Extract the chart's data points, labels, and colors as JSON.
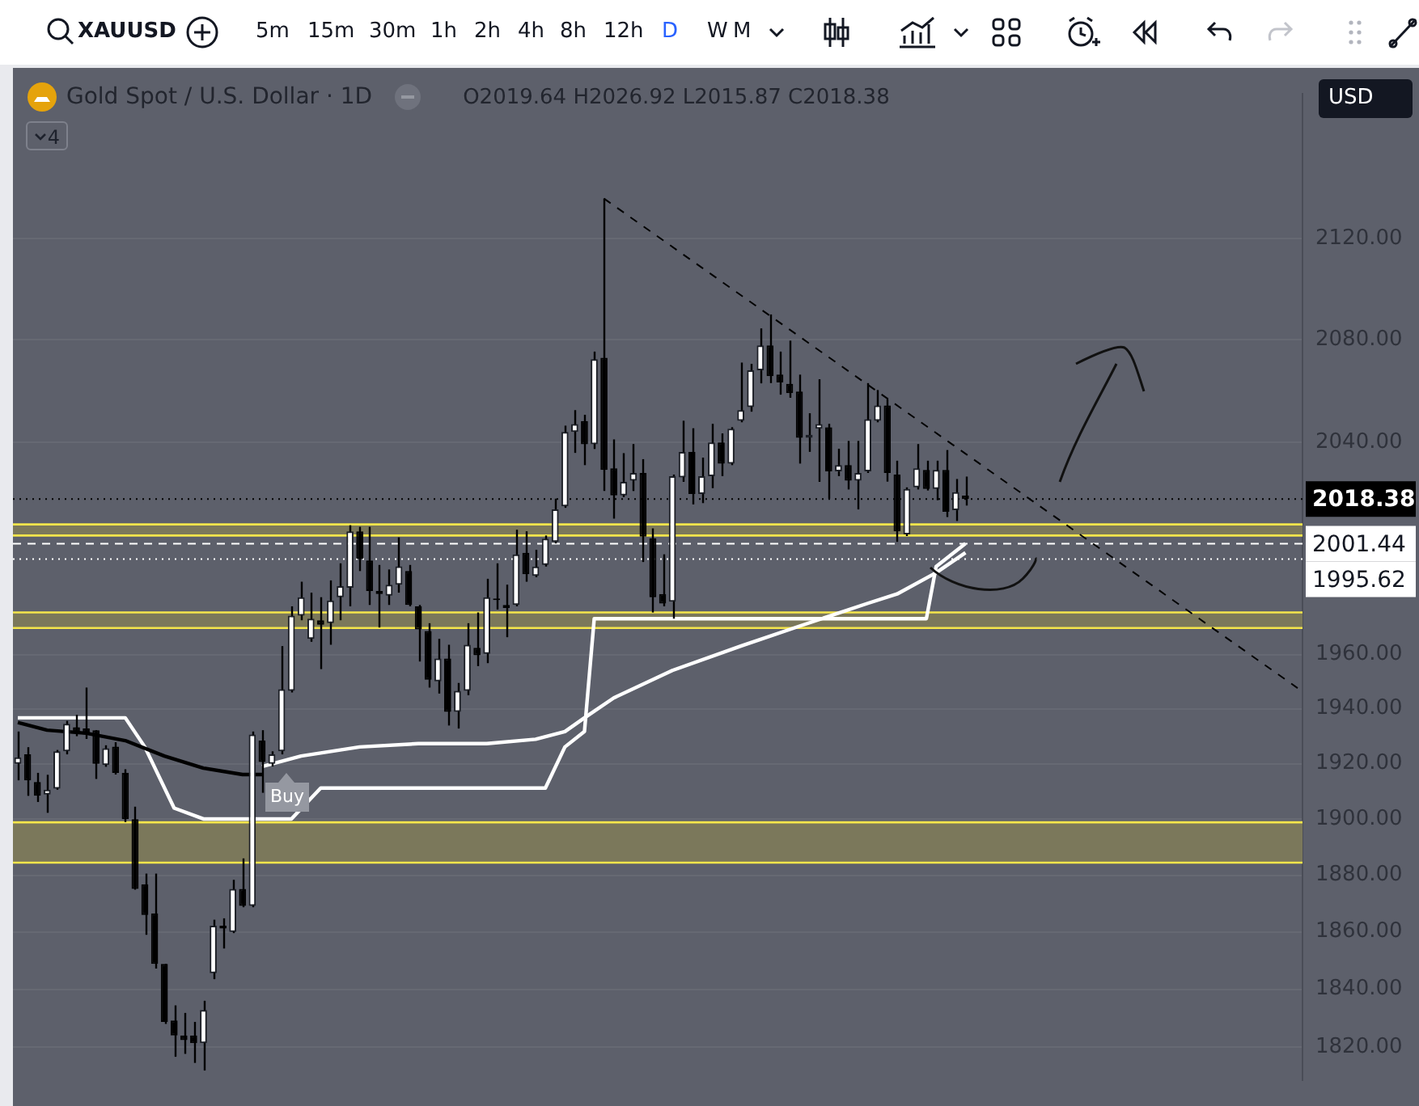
{
  "chart_data": {
    "type": "candlestick",
    "title": "Gold Spot / U.S. Dollar · 1D",
    "subtitle": "O2019.64 H2026.92 L2015.87 C2018.38",
    "categories": [
      null,
      null,
      null,
      null,
      null,
      null,
      null,
      null,
      null,
      null,
      null,
      null,
      null,
      null,
      null,
      null,
      null,
      null,
      null,
      null,
      null,
      null,
      null,
      null,
      null,
      null,
      null,
      null,
      null,
      null,
      null,
      null,
      null,
      null,
      null,
      null,
      null,
      null,
      null,
      null,
      null,
      null,
      null,
      null,
      null,
      null,
      null,
      null,
      null,
      null,
      null,
      null,
      null,
      null,
      null,
      null,
      null,
      null,
      null,
      null,
      null,
      null,
      null,
      null,
      null,
      null,
      null,
      null,
      null,
      null,
      null,
      null,
      null,
      null,
      null,
      null,
      null,
      null,
      null,
      null,
      null,
      null,
      null,
      null,
      null,
      null,
      null,
      null,
      null,
      null,
      null,
      null,
      null,
      null,
      null,
      null,
      null,
      null,
      null,
      null,
      null,
      null,
      null,
      null,
      null,
      null,
      null,
      null,
      null,
      null,
      null,
      null,
      null,
      null,
      null,
      null,
      null,
      null,
      null,
      null,
      null,
      null,
      null,
      null,
      null,
      null,
      null,
      null,
      null,
      null,
      null,
      null
    ],
    "ohlc": [
      [
        1920,
        1931.7,
        1914,
        1922.3
      ],
      [
        1923.4,
        1926,
        1908.4,
        1914
      ],
      [
        1913.4,
        1916.7,
        1906.2,
        1908.4
      ],
      [
        1908.9,
        1916,
        1902.3,
        1910.6
      ],
      [
        1911,
        1925,
        1910.6,
        1924.5
      ],
      [
        1924.5,
        1935.6,
        1923.4,
        1934.5
      ],
      [
        1933.3,
        1937.8,
        1930,
        1931.1
      ],
      [
        1932.8,
        1947.8,
        1929,
        1930.6
      ],
      [
        1932.2,
        1932.2,
        1914.5,
        1920
      ],
      [
        1919.5,
        1926.7,
        1918.9,
        1925.6
      ],
      [
        1926.2,
        1927.8,
        1916.1,
        1916.7
      ],
      [
        1916.7,
        1918,
        1899,
        1900
      ],
      [
        1900,
        1904.5,
        1874.9,
        1875.2
      ],
      [
        1876.8,
        1880.6,
        1859,
        1866
      ],
      [
        1866.5,
        1880.6,
        1847.2,
        1848.8
      ],
      [
        1848.8,
        1848.8,
        1828,
        1828.7
      ],
      [
        1829.2,
        1834.4,
        1816.7,
        1824
      ],
      [
        1824,
        1831.8,
        1817.7,
        1822.4
      ],
      [
        1824,
        1828.7,
        1814.6,
        1821.4
      ],
      [
        1821.4,
        1836,
        1812,
        1832.8
      ],
      [
        1845.6,
        1864.3,
        1843.5,
        1862.2
      ],
      [
        1862.2,
        1864.8,
        1854.2,
        1861.2
      ],
      [
        1860,
        1878.4,
        1859.6,
        1875.2
      ],
      [
        1875.2,
        1886,
        1868.7,
        1869.2
      ],
      [
        1869.2,
        1931.7,
        1868.7,
        1930.6
      ],
      [
        1928.4,
        1932.2,
        1909.5,
        1920.6
      ],
      [
        1920,
        1924.5,
        1919,
        1923.4
      ],
      [
        1924.5,
        1963.1,
        1923.4,
        1947.2
      ],
      [
        1946.6,
        1977.9,
        1946,
        1974.4
      ],
      [
        1974.4,
        1987.1,
        1972.7,
        1981.3
      ],
      [
        1965.8,
        1983,
        1964.7,
        1973.3
      ],
      [
        1972.7,
        1981.3,
        1954.6,
        1971
      ],
      [
        1971.6,
        1987.6,
        1963.6,
        1980.1
      ],
      [
        1981.3,
        1994,
        1972.7,
        1985.4
      ],
      [
        1984.8,
        2008.4,
        1977.9,
        2006.1
      ],
      [
        2006.1,
        2007.8,
        1991.1,
        1995.7
      ],
      [
        1995.1,
        2007.8,
        1978.4,
        1983.6
      ],
      [
        1983.6,
        1993.4,
        1970,
        1982.5
      ],
      [
        1981.9,
        1991.7,
        1978.4,
        1986
      ],
      [
        1986,
        2003.8,
        1983,
        1992.9
      ],
      [
        1991.1,
        1993.4,
        1977.9,
        1978.4
      ],
      [
        1977.9,
        1978.4,
        1957.4,
        1969.3
      ],
      [
        1968.7,
        1971.6,
        1947.8,
        1950.7
      ],
      [
        1950.1,
        1965.8,
        1945.6,
        1958.5
      ],
      [
        1958.5,
        1963.6,
        1933.9,
        1938.9
      ],
      [
        1938.9,
        1949.5,
        1932.8,
        1946.6
      ],
      [
        1946.6,
        1971.6,
        1945,
        1963.6
      ],
      [
        1962.5,
        1975.6,
        1955.7,
        1959.7
      ],
      [
        1960.2,
        1988.2,
        1956.8,
        1981.3
      ],
      [
        1980.8,
        1994,
        1976.7,
        1980.2
      ],
      [
        1978.4,
        1986,
        1966.4,
        1977.3
      ],
      [
        1978.4,
        2006.7,
        1977.9,
        1997.4
      ],
      [
        1998,
        2006.1,
        1987.1,
        1989.9
      ],
      [
        1989.3,
        1999.1,
        1988.8,
        1992.8
      ],
      [
        1993.4,
        2004.5,
        1992.8,
        2003.3
      ],
      [
        2002.1,
        2018.5,
        2001.5,
        2014.4
      ],
      [
        2015.6,
        2046.5,
        2015,
        2044.1
      ],
      [
        2044.1,
        2052.5,
        2036,
        2047.1
      ],
      [
        2048.3,
        2050.7,
        2031.3,
        2039.3
      ],
      [
        2039.3,
        2075.3,
        2037.5,
        2072.3
      ],
      [
        2072.9,
        2136.1,
        2021.4,
        2029.5
      ],
      [
        2030.1,
        2041.2,
        2010.9,
        2019.7
      ],
      [
        2019.7,
        2035.9,
        2019.1,
        2024.9
      ],
      [
        2025.4,
        2039.4,
        2021.4,
        2028.3
      ],
      [
        2028.3,
        2033.6,
        1994.5,
        2004.1
      ],
      [
        2003.5,
        2007.2,
        1975.6,
        1981.3
      ],
      [
        1982.5,
        1997.4,
        1977.9,
        1978.9
      ],
      [
        1979.6,
        2027.7,
        1973.3,
        2027.1
      ],
      [
        2026.6,
        2048.4,
        2024.9,
        2036.4
      ],
      [
        2036.4,
        2045.5,
        2016.3,
        2020.3
      ],
      [
        2020.3,
        2034.2,
        2016.8,
        2027.1
      ],
      [
        2027.1,
        2047.2,
        2022.5,
        2040
      ],
      [
        2040,
        2043.5,
        2027.1,
        2031.9
      ],
      [
        2031.9,
        2045.9,
        2031.3,
        2045.3
      ],
      [
        2048.4,
        2071,
        2047.8,
        2052.5
      ],
      [
        2053.7,
        2070.5,
        2051.9,
        2068
      ],
      [
        2068,
        2084.4,
        2062.9,
        2077.7
      ],
      [
        2077.7,
        2089.9,
        2063,
        2065.7
      ],
      [
        2066.3,
        2075.3,
        2058.5,
        2063.3
      ],
      [
        2062.7,
        2079.6,
        2057.3,
        2059.1
      ],
      [
        2059.7,
        2066.3,
        2031.9,
        2041.8
      ],
      [
        2041.8,
        2051.3,
        2036.4,
        2043
      ],
      [
        2045.3,
        2064.5,
        2024.9,
        2047.1
      ],
      [
        2045.9,
        2047.2,
        2018.5,
        2028.9
      ],
      [
        2028.9,
        2037.6,
        2027.1,
        2031.3
      ],
      [
        2031.3,
        2040.6,
        2022,
        2025.4
      ],
      [
        2025.4,
        2040.6,
        2014.4,
        2028.3
      ],
      [
        2028.9,
        2063,
        2028.3,
        2049
      ],
      [
        2048.4,
        2060.3,
        2047.8,
        2054.3
      ],
      [
        2054.3,
        2056.7,
        2025,
        2028.3
      ],
      [
        2027.7,
        2033,
        2002.1,
        2006.1
      ],
      [
        2004.9,
        2022.8,
        2004.3,
        2022.2
      ],
      [
        2022.8,
        2039.4,
        2022,
        2030.1
      ],
      [
        2029.5,
        2033,
        2021.6,
        2022.2
      ],
      [
        2022.2,
        2033,
        2017.9,
        2029.5
      ],
      [
        2029.5,
        2037.1,
        2011.5,
        2013.5
      ],
      [
        2014.1,
        2026,
        2010,
        2021
      ],
      [
        2019.64,
        2026.92,
        2015.87,
        2018.38
      ],
      null,
      null,
      null,
      null,
      null,
      null,
      null,
      null,
      null,
      null,
      null,
      null,
      null,
      null,
      null,
      null,
      null,
      null,
      null,
      null,
      null,
      null,
      null,
      null,
      null,
      null,
      null,
      null,
      null,
      null,
      null,
      null,
      null,
      null
    ],
    "series": [
      {
        "type": "line",
        "color": "#000000",
        "values": [
          1935,
          null,
          null,
          1932.2,
          null,
          null,
          null,
          1931.1,
          null,
          null,
          null,
          1928.4,
          null,
          null,
          null,
          1922.8,
          null,
          null,
          null,
          1918.4,
          null,
          null,
          null,
          1916.1,
          null,
          1916.1,
          null,
          null,
          null,
          null,
          null,
          null,
          null,
          null,
          null,
          null,
          null,
          null,
          null,
          null,
          null,
          null,
          null,
          null,
          null,
          null,
          null,
          null,
          null,
          null,
          null,
          null,
          null,
          null,
          null,
          null,
          null,
          null,
          null,
          null,
          null,
          null,
          null,
          null,
          null,
          null,
          null,
          null,
          null,
          null,
          null,
          null,
          null,
          null,
          null,
          null,
          null,
          null,
          null,
          null,
          null,
          null,
          null,
          null,
          null,
          null,
          null,
          null,
          null,
          null,
          null,
          null,
          null,
          null,
          null,
          null,
          null,
          null,
          null,
          null,
          null,
          null,
          null,
          null,
          null,
          null,
          null,
          null,
          null,
          null,
          null,
          null,
          null,
          null,
          null,
          null,
          null,
          null,
          null,
          null,
          null,
          null,
          null,
          null,
          null,
          null,
          null,
          null,
          null,
          null,
          null,
          null
        ]
      },
      {
        "type": "line",
        "color": "#ffffff",
        "values": [
          null,
          null,
          null,
          null,
          null,
          null,
          null,
          null,
          null,
          null,
          null,
          null,
          null,
          null,
          null,
          null,
          null,
          null,
          null,
          null,
          null,
          null,
          null,
          null,
          null,
          1919,
          null,
          null,
          null,
          1922.8,
          null,
          1923.9,
          null,
          null,
          null,
          1926.1,
          null,
          null,
          null,
          null,
          null,
          1927.3,
          null,
          null,
          null,
          null,
          null,
          null,
          1927.3,
          null,
          null,
          null,
          null,
          1928.9,
          null,
          null,
          1931.7,
          null,
          1936.7,
          null,
          null,
          1944,
          null,
          null,
          null,
          null,
          null,
          1954.1,
          null,
          null,
          null,
          null,
          null,
          null,
          1963.1,
          null,
          null,
          null,
          null,
          null,
          1970.5,
          null,
          null,
          null,
          null,
          null,
          null,
          1979,
          null,
          null,
          1982.5,
          null,
          null,
          null,
          1990.5,
          null,
          null,
          1998,
          null,
          null,
          null,
          null,
          null,
          null,
          null,
          null,
          null,
          null,
          null,
          null,
          null,
          null,
          null,
          null,
          null,
          null,
          null,
          null,
          null,
          null,
          null,
          null,
          null,
          null,
          null,
          null,
          null,
          null,
          null,
          null,
          null,
          null
        ]
      },
      {
        "type": "line",
        "color": "#ffffff",
        "values": [
          1936.7,
          null,
          null,
          null,
          null,
          null,
          null,
          null,
          null,
          null,
          null,
          1936.7,
          null,
          1926.1,
          null,
          null,
          1904,
          null,
          null,
          1900.1,
          null,
          null,
          null,
          null,
          null,
          null,
          null,
          null,
          1900.1,
          null,
          null,
          1911.2,
          null,
          null,
          null,
          null,
          null,
          null,
          null,
          null,
          null,
          null,
          null,
          null,
          null,
          null,
          null,
          null,
          null,
          null,
          null,
          null,
          null,
          null,
          1911.2,
          null,
          1926.1,
          null,
          1931.7,
          1973.3,
          null,
          null,
          null,
          null,
          null,
          null,
          null,
          null,
          null,
          null,
          null,
          null,
          null,
          null,
          null,
          null,
          null,
          null,
          null,
          null,
          null,
          null,
          null,
          null,
          null,
          null,
          null,
          null,
          null,
          null,
          null,
          null,
          null,
          1973.3,
          1992.8,
          null,
          null,
          2001.5,
          null,
          null,
          null,
          null,
          null,
          null,
          null,
          null,
          null,
          null,
          null,
          null,
          null,
          null,
          null,
          null,
          null,
          null,
          null,
          null,
          null,
          null,
          null,
          null,
          null,
          null,
          null,
          null,
          null,
          null,
          null,
          null,
          null,
          null
        ]
      },
      {
        "type": "line",
        "color": "#000000",
        "line_style": "dashed",
        "values": [
          null,
          null,
          null,
          null,
          null,
          null,
          null,
          null,
          null,
          null,
          null,
          null,
          null,
          null,
          null,
          null,
          null,
          null,
          null,
          null,
          null,
          null,
          null,
          null,
          null,
          null,
          null,
          null,
          null,
          null,
          null,
          null,
          null,
          null,
          null,
          null,
          null,
          null,
          null,
          null,
          null,
          null,
          null,
          null,
          null,
          null,
          null,
          null,
          null,
          null,
          null,
          null,
          null,
          null,
          null,
          null,
          null,
          null,
          null,
          null,
          2136.1,
          null,
          null,
          null,
          null,
          null,
          null,
          null,
          null,
          null,
          null,
          null,
          null,
          null,
          null,
          null,
          null,
          null,
          null,
          null,
          null,
          null,
          null,
          null,
          null,
          null,
          null,
          null,
          null,
          null,
          null,
          null,
          null,
          null,
          null,
          null,
          null,
          null,
          null,
          null,
          null,
          null,
          null,
          null,
          null,
          null,
          null,
          null,
          null,
          null,
          null,
          null,
          null,
          null,
          null,
          null,
          null,
          null,
          null,
          null,
          null,
          null,
          null,
          null,
          null,
          null,
          null,
          null,
          null,
          null,
          null,
          1947.6
        ]
      }
    ],
    "ylim": [
      1808.6,
      2178.9
    ],
    "yticks": [
      {
        "value": 1820,
        "label": "1820.00"
      },
      {
        "value": 1840,
        "label": "1840.00"
      },
      {
        "value": 1860,
        "label": "1860.00"
      },
      {
        "value": 1880,
        "label": "1880.00"
      },
      {
        "value": 1900,
        "label": "1900.00"
      },
      {
        "value": 1920,
        "label": "1920.00"
      },
      {
        "value": 1940,
        "label": "1940.00"
      },
      {
        "value": 1960,
        "label": "1960.00"
      },
      {
        "value": 2040,
        "label": "2040.00"
      },
      {
        "value": 2080,
        "label": "2080.00"
      },
      {
        "value": 2120,
        "label": "2120.00"
      }
    ],
    "log": true,
    "grid": "y",
    "tick_labels": "y",
    "bands": [
      {
        "axis": "y",
        "from": 2004.5,
        "to": 2008.7,
        "color": "#7b785b"
      },
      {
        "axis": "y",
        "from": 1969.8,
        "to": 1975.6,
        "color": "#7b785b"
      },
      {
        "axis": "y",
        "from": 1884.5,
        "to": 1898.9,
        "color": "#7b785b"
      }
    ],
    "ref_lines": [
      {
        "axis": "y",
        "value": 2018.38,
        "label": "2018.38",
        "color": "#000000",
        "line_style": "dotted"
      },
      {
        "axis": "y",
        "value": 2001.44,
        "label": "2001.44",
        "color": "#ffffff",
        "line_style": "dashed"
      },
      {
        "axis": "y",
        "value": 1995.62,
        "label": "1995.62",
        "color": "#ffffff",
        "line_style": "dotted"
      },
      {
        "axis": "y",
        "value": 2008.7,
        "color": "#f5e64b",
        "line_style": "solid"
      },
      {
        "axis": "y",
        "value": 2004.5,
        "color": "#f5e64b",
        "line_style": "solid"
      },
      {
        "axis": "y",
        "value": 1975.6,
        "color": "#f5e64b",
        "line_style": "solid"
      },
      {
        "axis": "y",
        "value": 1969.8,
        "color": "#f5e64b",
        "line_style": "solid"
      },
      {
        "axis": "y",
        "value": 1898.9,
        "color": "#f5e64b",
        "line_style": "solid"
      },
      {
        "axis": "y",
        "value": 1884.5,
        "color": "#f5e64b",
        "line_style": "solid"
      }
    ],
    "annotations": [
      "XAUUSD",
      "5m",
      "15m",
      "30m",
      "1h",
      "2h",
      "4h",
      "8h",
      "12h",
      "D",
      "W",
      "M",
      "USD",
      "4",
      "Buy"
    ]
  }
}
